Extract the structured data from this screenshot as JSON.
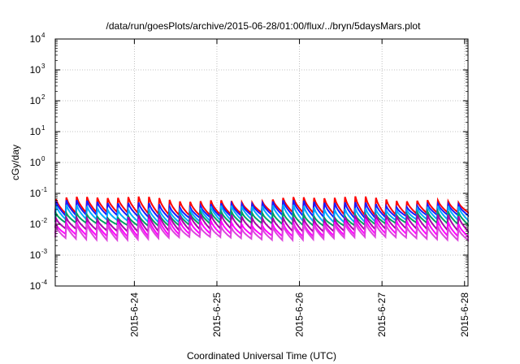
{
  "chart_data": {
    "type": "line",
    "title": "/data/run/goesPlots/archive/2015-06-28/01:00/flux/../bryn/5daysMars.plot",
    "xlabel": "Coordinated Universal Time (UTC)",
    "ylabel": "cGy/day",
    "yscale": "log",
    "ylim": [
      0.0001,
      10000
    ],
    "xlim": [
      "2015-06-23 01:00",
      "2015-06-28 01:00"
    ],
    "grid": true,
    "y_ticks": [
      {
        "base": "10",
        "exp": "-4",
        "value": 0.0001
      },
      {
        "base": "10",
        "exp": "-3",
        "value": 0.001
      },
      {
        "base": "10",
        "exp": "-2",
        "value": 0.01
      },
      {
        "base": "10",
        "exp": "-1",
        "value": 0.1
      },
      {
        "base": "10",
        "exp": "0",
        "value": 1
      },
      {
        "base": "10",
        "exp": "1",
        "value": 10
      },
      {
        "base": "10",
        "exp": "2",
        "value": 100
      },
      {
        "base": "10",
        "exp": "3",
        "value": 1000
      },
      {
        "base": "10",
        "exp": "4",
        "value": 10000
      }
    ],
    "x_ticks": [
      {
        "label": "2015-6-24",
        "value": "2015-06-24 00:00"
      },
      {
        "label": "2015-6-25",
        "value": "2015-06-25 00:00"
      },
      {
        "label": "2015-6-26",
        "value": "2015-06-26 00:00"
      },
      {
        "label": "2015-6-27",
        "value": "2015-06-27 00:00"
      },
      {
        "label": "2015-6-28",
        "value": "2015-06-28 00:00"
      }
    ],
    "cycle_period_hours": 3,
    "series": [
      {
        "color": "#ff0000",
        "peak": 0.065,
        "trough": 0.022,
        "range": [
          0.045,
          0.08
        ]
      },
      {
        "color": "#1a1aff",
        "peak": 0.048,
        "trough": 0.018,
        "range": [
          0.035,
          0.06
        ]
      },
      {
        "color": "#00aaff",
        "peak": 0.035,
        "trough": 0.013,
        "range": [
          0.028,
          0.045
        ]
      },
      {
        "color": "#00a060",
        "peak": 0.022,
        "trough": 0.01,
        "range": [
          0.016,
          0.026
        ]
      },
      {
        "color": "#aa00aa",
        "peak": 0.018,
        "trough": 0.0065,
        "range": [
          0.013,
          0.021
        ]
      },
      {
        "color": "#ff00ff",
        "peak": 0.012,
        "trough": 0.0045,
        "range": [
          0.009,
          0.015
        ]
      },
      {
        "color": "#dd44dd",
        "peak": 0.009,
        "trough": 0.0035,
        "range": [
          0.007,
          0.011
        ]
      }
    ]
  }
}
